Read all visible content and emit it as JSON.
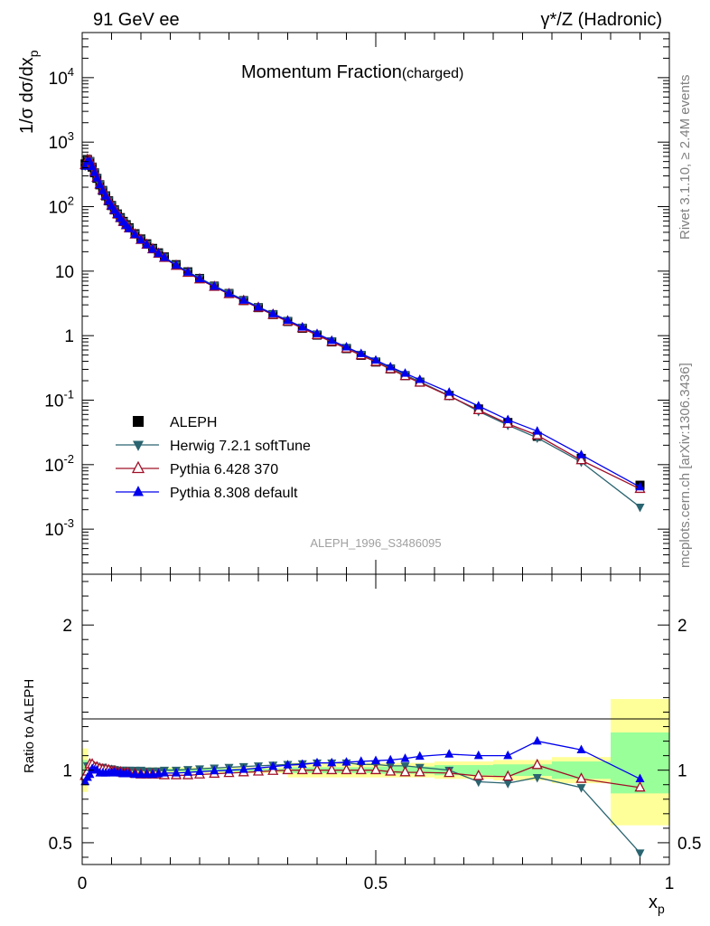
{
  "header": {
    "left": "91 GeV ee",
    "right": "γ*/Z (Hadronic)"
  },
  "side_labels": {
    "rivet": "Rivet 3.1.10, ≥ 2.4M events",
    "mcplots": "mcplots.cern.ch [arXiv:1306.3436]"
  },
  "chart_data": [
    {
      "type": "line",
      "title": "Momentum Fraction",
      "title_suffix": "(charged)",
      "watermark": "ALEPH_1996_S3486095",
      "ylabel": "1/σ dσ/dx_p",
      "yscale": "log",
      "ylim": [
        0.0002,
        50000
      ],
      "xlim": [
        0,
        1
      ],
      "y_tick_labels": [
        "10^-3",
        "10^-2",
        "10^-1",
        "1",
        "10",
        "10^2",
        "10^3",
        "10^4"
      ],
      "legend_position": "lower-left",
      "x": [
        0.005,
        0.009,
        0.013,
        0.017,
        0.021,
        0.025,
        0.03,
        0.035,
        0.04,
        0.045,
        0.05,
        0.055,
        0.06,
        0.065,
        0.07,
        0.075,
        0.08,
        0.09,
        0.1,
        0.11,
        0.12,
        0.13,
        0.14,
        0.16,
        0.18,
        0.2,
        0.225,
        0.25,
        0.275,
        0.3,
        0.325,
        0.35,
        0.375,
        0.4,
        0.425,
        0.45,
        0.475,
        0.5,
        0.525,
        0.55,
        0.575,
        0.625,
        0.675,
        0.725,
        0.775,
        0.85,
        0.95
      ],
      "series": [
        {
          "name": "ALEPH",
          "color": "#000000",
          "marker": "square",
          "values": [
            460,
            540,
            500,
            410,
            335,
            275,
            218,
            178,
            147,
            123,
            104,
            89,
            77,
            67.5,
            59,
            52.5,
            47,
            38,
            31.5,
            26.5,
            22.5,
            19.2,
            16.6,
            12.6,
            9.75,
            7.7,
            5.85,
            4.5,
            3.5,
            2.72,
            2.12,
            1.66,
            1.3,
            1.02,
            0.8,
            0.63,
            0.495,
            0.39,
            0.305,
            0.24,
            0.19,
            0.118,
            0.073,
            0.045,
            0.0275,
            0.0125,
            0.0048
          ]
        },
        {
          "name": "Herwig 7.2.1 softTune",
          "color": "#2a6470",
          "marker": "triangle-down",
          "values": [
            430,
            555,
            515,
            420,
            345,
            282,
            222,
            181,
            149,
            124,
            105,
            89.5,
            77.2,
            67.5,
            59,
            52.5,
            47,
            38,
            31.5,
            26.4,
            22.4,
            19.2,
            16.6,
            12.6,
            9.8,
            7.8,
            5.95,
            4.6,
            3.6,
            2.8,
            2.19,
            1.73,
            1.36,
            1.07,
            0.84,
            0.66,
            0.515,
            0.405,
            0.315,
            0.247,
            0.193,
            0.117,
            0.067,
            0.041,
            0.026,
            0.011,
            0.0022
          ]
        },
        {
          "name": "Pythia 6.428 370",
          "color": "#a01028",
          "marker": "triangle-open",
          "values": [
            440,
            535,
            520,
            425,
            343,
            280,
            220,
            179,
            148,
            123,
            103.5,
            88.5,
            76,
            66.5,
            58,
            51.5,
            46,
            37,
            30.5,
            25.7,
            21.8,
            18.6,
            16,
            12.1,
            9.4,
            7.45,
            5.7,
            4.4,
            3.45,
            2.7,
            2.1,
            1.66,
            1.3,
            1.02,
            0.8,
            0.63,
            0.495,
            0.39,
            0.302,
            0.236,
            0.187,
            0.116,
            0.07,
            0.043,
            0.0285,
            0.0117,
            0.0042
          ]
        },
        {
          "name": "Pythia 8.308 default",
          "color": "#0000ee",
          "marker": "triangle",
          "values": [
            420,
            510,
            500,
            415,
            337,
            277,
            218,
            177,
            145.5,
            121,
            102,
            87.5,
            75.5,
            66,
            57.5,
            51,
            45.5,
            36.8,
            30.4,
            25.6,
            21.8,
            18.7,
            16.2,
            12.3,
            9.6,
            7.6,
            5.8,
            4.5,
            3.52,
            2.76,
            2.17,
            1.72,
            1.35,
            1.07,
            0.84,
            0.665,
            0.525,
            0.415,
            0.327,
            0.26,
            0.208,
            0.132,
            0.081,
            0.0495,
            0.033,
            0.0142,
            0.0045
          ]
        }
      ]
    },
    {
      "type": "line",
      "ylabel": "Ratio to ALEPH",
      "xlabel": "x_p",
      "ylim": [
        0.35,
        2.35
      ],
      "xlim": [
        0,
        1
      ],
      "y_tick_labels": [
        "0.5",
        "1",
        "2"
      ],
      "x_tick_labels": [
        "0",
        "0.5",
        "1"
      ],
      "x": [
        0.005,
        0.009,
        0.013,
        0.017,
        0.021,
        0.025,
        0.03,
        0.035,
        0.04,
        0.045,
        0.05,
        0.055,
        0.06,
        0.065,
        0.07,
        0.075,
        0.08,
        0.09,
        0.1,
        0.11,
        0.12,
        0.13,
        0.14,
        0.16,
        0.18,
        0.2,
        0.225,
        0.25,
        0.275,
        0.3,
        0.325,
        0.35,
        0.375,
        0.4,
        0.425,
        0.45,
        0.475,
        0.5,
        0.525,
        0.55,
        0.575,
        0.625,
        0.675,
        0.725,
        0.775,
        0.85,
        0.95
      ],
      "bands": [
        {
          "xlo": 0.0,
          "xhi": 0.01,
          "stat_lo": 0.93,
          "stat_hi": 1.07,
          "tot_lo": 0.85,
          "tot_hi": 1.15
        },
        {
          "xlo": 0.01,
          "xhi": 0.35,
          "stat_lo": 0.99,
          "stat_hi": 1.01,
          "tot_lo": 0.98,
          "tot_hi": 1.02
        },
        {
          "xlo": 0.35,
          "xhi": 0.5,
          "stat_lo": 0.98,
          "stat_hi": 1.02,
          "tot_lo": 0.95,
          "tot_hi": 1.05
        },
        {
          "xlo": 0.5,
          "xhi": 0.6,
          "stat_lo": 0.975,
          "stat_hi": 1.025,
          "tot_lo": 0.95,
          "tot_hi": 1.05
        },
        {
          "xlo": 0.6,
          "xhi": 0.7,
          "stat_lo": 0.965,
          "stat_hi": 1.035,
          "tot_lo": 0.94,
          "tot_hi": 1.06
        },
        {
          "xlo": 0.7,
          "xhi": 0.8,
          "stat_lo": 0.96,
          "stat_hi": 1.04,
          "tot_lo": 0.93,
          "tot_hi": 1.07
        },
        {
          "xlo": 0.8,
          "xhi": 0.9,
          "stat_lo": 0.94,
          "stat_hi": 1.06,
          "tot_lo": 0.91,
          "tot_hi": 1.09
        },
        {
          "xlo": 0.9,
          "xhi": 1.0,
          "stat_lo": 0.84,
          "stat_hi": 1.26,
          "tot_lo": 0.62,
          "tot_hi": 1.49
        }
      ],
      "series": [
        {
          "name": "Herwig 7.2.1 softTune",
          "color": "#2a6470",
          "marker": "triangle-down",
          "values": [
            0.93,
            1.03,
            1.03,
            1.02,
            1.03,
            1.02,
            1.02,
            1.02,
            1.01,
            1.01,
            1.01,
            1.005,
            1.0,
            1.0,
            1.0,
            1.0,
            1.0,
            1.0,
            1.0,
            0.995,
            0.995,
            0.995,
            1.0,
            1.0,
            1.005,
            1.01,
            1.015,
            1.02,
            1.025,
            1.03,
            1.035,
            1.04,
            1.045,
            1.05,
            1.05,
            1.05,
            1.04,
            1.04,
            1.03,
            1.03,
            1.02,
            1.0,
            0.92,
            0.91,
            0.95,
            0.88,
            0.43
          ]
        },
        {
          "name": "Pythia 6.428 370",
          "color": "#a01028",
          "marker": "triangle-open",
          "values": [
            0.96,
            0.99,
            1.04,
            1.04,
            1.02,
            1.02,
            1.01,
            1.005,
            1.005,
            1.0,
            0.995,
            0.99,
            0.985,
            0.985,
            0.98,
            0.98,
            0.98,
            0.975,
            0.97,
            0.97,
            0.97,
            0.97,
            0.965,
            0.965,
            0.965,
            0.97,
            0.975,
            0.98,
            0.985,
            0.99,
            0.995,
            1.0,
            1.0,
            1.0,
            1.0,
            1.0,
            1.0,
            1.0,
            0.99,
            0.985,
            0.985,
            0.98,
            0.96,
            0.955,
            1.035,
            0.94,
            0.88
          ]
        },
        {
          "name": "Pythia 8.308 default",
          "color": "#0000ee",
          "marker": "triangle",
          "values": [
            0.92,
            0.95,
            0.97,
            1.01,
            1.0,
            1.0,
            0.98,
            0.98,
            0.98,
            0.98,
            0.985,
            0.985,
            0.98,
            0.98,
            0.975,
            0.975,
            0.975,
            0.97,
            0.97,
            0.97,
            0.97,
            0.975,
            0.98,
            0.98,
            0.985,
            0.99,
            0.995,
            1.0,
            1.005,
            1.015,
            1.025,
            1.035,
            1.04,
            1.05,
            1.05,
            1.055,
            1.06,
            1.065,
            1.07,
            1.08,
            1.095,
            1.11,
            1.1,
            1.1,
            1.2,
            1.14,
            0.94
          ]
        }
      ]
    }
  ]
}
